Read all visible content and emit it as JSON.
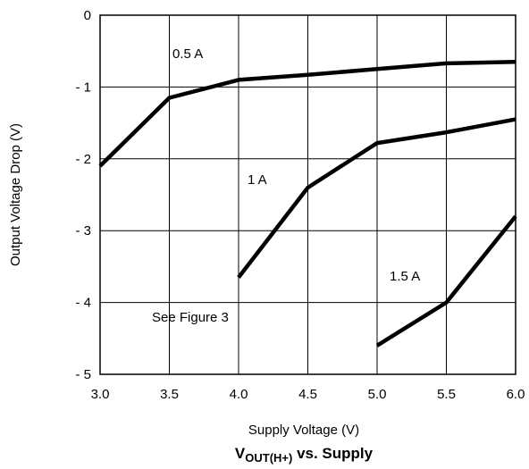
{
  "chart_data": {
    "type": "line",
    "title_main": "V",
    "title_sub": "OUT(H+)",
    "title_rest": " vs. Supply",
    "xlabel": "Supply Voltage (V)",
    "ylabel": "Output Voltage Drop (V)",
    "xlim": [
      3.0,
      6.0
    ],
    "ylim": [
      -5,
      0
    ],
    "xticks": [
      "3.0",
      "3.5",
      "4.0",
      "4.5",
      "5.0",
      "5.5",
      "6.0"
    ],
    "xtick_values": [
      3.0,
      3.5,
      4.0,
      4.5,
      5.0,
      5.5,
      6.0
    ],
    "yticks": [
      "0",
      "- 1",
      "- 2",
      "- 3",
      "- 4",
      "- 5"
    ],
    "ytick_values": [
      0,
      -1,
      -2,
      -3,
      -4,
      -5
    ],
    "grid": true,
    "series": [
      {
        "name": "0.5 A",
        "x": [
          3.0,
          3.5,
          4.0,
          4.5,
          5.0,
          5.5,
          6.0
        ],
        "y": [
          -2.1,
          -1.15,
          -0.9,
          -0.83,
          -0.75,
          -0.67,
          -0.65
        ]
      },
      {
        "name": "1 A",
        "x": [
          4.0,
          4.5,
          5.0,
          5.5,
          6.0
        ],
        "y": [
          -3.65,
          -2.4,
          -1.78,
          -1.63,
          -1.45
        ]
      },
      {
        "name": "1.5 A",
        "x": [
          5.0,
          5.5,
          6.0
        ],
        "y": [
          -4.6,
          -4.0,
          -2.8
        ]
      }
    ],
    "annotations": [
      "See Figure 3"
    ]
  }
}
